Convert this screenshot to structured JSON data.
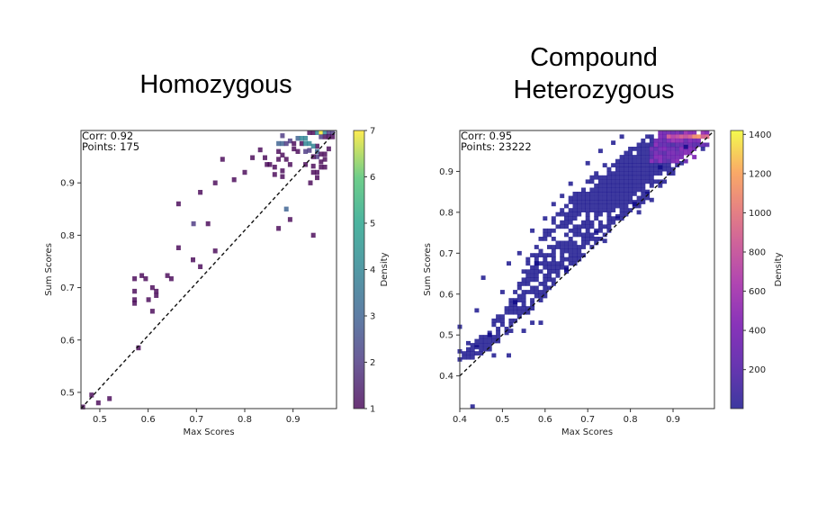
{
  "figure": {
    "panel_titles": [
      "Homozygous",
      "Compound\nHeterozygous"
    ]
  },
  "chart_data": [
    {
      "type": "heatmap",
      "title": "Homozygous",
      "xlabel": "Max Scores",
      "ylabel": "Sum Scores",
      "xlim": [
        0.461,
        0.99
      ],
      "ylim": [
        0.469,
        1.0
      ],
      "xticks": [
        0.5,
        0.6,
        0.7,
        0.8,
        0.9
      ],
      "xtick_labels": [
        "0.5",
        "0.6",
        "0.7",
        "0.8",
        "0.9"
      ],
      "yticks": [
        0.5,
        0.6,
        0.7,
        0.8,
        0.9
      ],
      "ytick_labels": [
        "0.5",
        "0.6",
        "0.7",
        "0.8",
        "0.9"
      ],
      "bin_size": 0.0088,
      "annotation": [
        "Corr: 0.92",
        "Points: 175"
      ],
      "reference_line": {
        "style": "dashed",
        "from": [
          0.461,
          0.469
        ],
        "to": [
          0.99,
          1.0
        ]
      },
      "colorbar": {
        "label": "Density",
        "colormap": "viridis",
        "range": [
          1,
          7
        ],
        "ticks": [
          1,
          2,
          3,
          4,
          5,
          6,
          7
        ]
      },
      "bins": [
        [
          0.465,
          0.472,
          1
        ],
        [
          0.483,
          0.495,
          1
        ],
        [
          0.497,
          0.48,
          1
        ],
        [
          0.52,
          0.488,
          1
        ],
        [
          0.58,
          0.585,
          1
        ],
        [
          0.572,
          0.717,
          1
        ],
        [
          0.572,
          0.693,
          1
        ],
        [
          0.572,
          0.677,
          1
        ],
        [
          0.572,
          0.67,
          1
        ],
        [
          0.587,
          0.723,
          1
        ],
        [
          0.595,
          0.717,
          1
        ],
        [
          0.601,
          0.677,
          1
        ],
        [
          0.609,
          0.7,
          1
        ],
        [
          0.609,
          0.655,
          1
        ],
        [
          0.617,
          0.693,
          1
        ],
        [
          0.617,
          0.685,
          1
        ],
        [
          0.64,
          0.723,
          1
        ],
        [
          0.648,
          0.717,
          1
        ],
        [
          0.663,
          0.776,
          1
        ],
        [
          0.693,
          0.753,
          1
        ],
        [
          0.708,
          0.74,
          1
        ],
        [
          0.739,
          0.77,
          1
        ],
        [
          0.708,
          0.882,
          1
        ],
        [
          0.694,
          0.822,
          2
        ],
        [
          0.724,
          0.822,
          1
        ],
        [
          0.663,
          0.86,
          1
        ],
        [
          0.739,
          0.9,
          1
        ],
        [
          0.754,
          0.945,
          1
        ],
        [
          0.778,
          0.906,
          1
        ],
        [
          0.8,
          0.92,
          1
        ],
        [
          0.816,
          0.948,
          1
        ],
        [
          0.832,
          0.963,
          1
        ],
        [
          0.842,
          0.948,
          1
        ],
        [
          0.846,
          0.935,
          1
        ],
        [
          0.852,
          0.935,
          1
        ],
        [
          0.862,
          0.916,
          1
        ],
        [
          0.862,
          0.93,
          1
        ],
        [
          0.87,
          0.945,
          1
        ],
        [
          0.878,
          0.912,
          1
        ],
        [
          0.878,
          0.923,
          1
        ],
        [
          0.894,
          0.935,
          1
        ],
        [
          0.91,
          0.96,
          1
        ],
        [
          0.926,
          0.935,
          1
        ],
        [
          0.936,
          0.9,
          1
        ],
        [
          0.942,
          0.932,
          1
        ],
        [
          0.95,
          0.97,
          1
        ],
        [
          0.942,
          0.92,
          1
        ],
        [
          0.95,
          0.92,
          1
        ],
        [
          0.95,
          0.91,
          1
        ],
        [
          0.894,
          0.83,
          1
        ],
        [
          0.87,
          0.813,
          1
        ],
        [
          0.942,
          0.8,
          1
        ],
        [
          0.886,
          0.85,
          3
        ],
        [
          0.878,
          0.99,
          2
        ],
        [
          0.87,
          0.975,
          3
        ],
        [
          0.878,
          0.975,
          3
        ],
        [
          0.886,
          0.975,
          2
        ],
        [
          0.894,
          0.98,
          2
        ],
        [
          0.902,
          0.975,
          1
        ],
        [
          0.902,
          0.965,
          1
        ],
        [
          0.91,
          0.985,
          3
        ],
        [
          0.918,
          0.985,
          4
        ],
        [
          0.926,
          0.985,
          4
        ],
        [
          0.918,
          0.975,
          1
        ],
        [
          0.926,
          0.975,
          4
        ],
        [
          0.934,
          0.975,
          4
        ],
        [
          0.942,
          0.97,
          4
        ],
        [
          0.95,
          0.96,
          3
        ],
        [
          0.95,
          0.95,
          2
        ],
        [
          0.958,
          0.955,
          1
        ],
        [
          0.966,
          0.945,
          1
        ],
        [
          0.958,
          0.94,
          1
        ],
        [
          0.934,
          0.996,
          1
        ],
        [
          0.942,
          0.996,
          1
        ],
        [
          0.95,
          0.996,
          4
        ],
        [
          0.958,
          0.996,
          7
        ],
        [
          0.966,
          0.996,
          4
        ],
        [
          0.974,
          0.996,
          2
        ],
        [
          0.982,
          0.996,
          2
        ],
        [
          0.974,
          0.988,
          1
        ],
        [
          0.982,
          0.988,
          1
        ],
        [
          0.966,
          0.988,
          1
        ],
        [
          0.958,
          0.988,
          2
        ],
        [
          0.974,
          0.965,
          1
        ],
        [
          0.966,
          0.955,
          1
        ],
        [
          0.926,
          0.96,
          2
        ],
        [
          0.934,
          0.962,
          2
        ],
        [
          0.942,
          0.95,
          1
        ],
        [
          0.958,
          0.93,
          1
        ],
        [
          0.966,
          0.93,
          1
        ],
        [
          0.878,
          0.953,
          1
        ],
        [
          0.886,
          0.945,
          1
        ],
        [
          0.87,
          0.96,
          1
        ]
      ]
    },
    {
      "type": "heatmap",
      "title": "Compound Heterozygous",
      "xlabel": "Max Scores",
      "ylabel": "Sum Scores",
      "xlim": [
        0.4,
        0.997
      ],
      "ylim": [
        0.32,
        1.0
      ],
      "xticks": [
        0.4,
        0.5,
        0.6,
        0.7,
        0.8,
        0.9
      ],
      "xtick_labels": [
        "0.4",
        "0.5",
        "0.6",
        "0.7",
        "0.8",
        "0.9"
      ],
      "yticks": [
        0.4,
        0.5,
        0.6,
        0.7,
        0.8,
        0.9
      ],
      "ytick_labels": [
        "0.4",
        "0.5",
        "0.6",
        "0.7",
        "0.8",
        "0.9"
      ],
      "bin_size": 0.01,
      "annotation": [
        "Corr: 0.95",
        "Points: 23222"
      ],
      "reference_line": {
        "style": "dashed",
        "from": [
          0.4,
          0.4
        ],
        "to": [
          0.997,
          1.0
        ]
      },
      "colorbar": {
        "label": "Density",
        "colormap": "plasma",
        "range": [
          1,
          1420
        ],
        "ticks": [
          200,
          400,
          600,
          800,
          1000,
          1200,
          1400
        ]
      },
      "row_runs": [
        [
          0.995,
          0.86,
          0.99,
          60
        ],
        [
          0.985,
          0.84,
          0.99,
          120
        ],
        [
          0.975,
          0.83,
          0.99,
          80
        ],
        [
          0.965,
          0.82,
          0.98,
          40
        ],
        [
          0.955,
          0.8,
          0.97,
          30
        ],
        [
          0.945,
          0.79,
          0.96,
          20
        ],
        [
          0.935,
          0.77,
          0.95,
          15
        ],
        [
          0.925,
          0.77,
          0.93,
          12
        ],
        [
          0.915,
          0.74,
          0.92,
          10
        ],
        [
          0.905,
          0.74,
          0.91,
          8
        ],
        [
          0.895,
          0.72,
          0.9,
          6
        ],
        [
          0.885,
          0.71,
          0.89,
          5
        ],
        [
          0.875,
          0.7,
          0.88,
          4
        ],
        [
          0.865,
          0.7,
          0.87,
          3
        ],
        [
          0.855,
          0.68,
          0.86,
          3
        ],
        [
          0.845,
          0.67,
          0.85,
          2
        ],
        [
          0.835,
          0.66,
          0.84,
          2
        ],
        [
          0.825,
          0.66,
          0.83,
          2
        ],
        [
          0.815,
          0.65,
          0.82,
          2
        ],
        [
          0.805,
          0.64,
          0.8,
          2
        ],
        [
          0.795,
          0.63,
          0.79,
          1
        ],
        [
          0.785,
          0.62,
          0.78,
          1
        ],
        [
          0.775,
          0.62,
          0.77,
          1
        ],
        [
          0.765,
          0.61,
          0.76,
          1
        ],
        [
          0.755,
          0.6,
          0.75,
          1
        ],
        [
          0.745,
          0.6,
          0.74,
          1
        ],
        [
          0.735,
          0.59,
          0.73,
          1
        ],
        [
          0.725,
          0.58,
          0.72,
          1
        ],
        [
          0.715,
          0.58,
          0.71,
          1
        ],
        [
          0.705,
          0.57,
          0.7,
          1
        ],
        [
          0.695,
          0.57,
          0.69,
          1
        ],
        [
          0.685,
          0.56,
          0.68,
          1
        ],
        [
          0.675,
          0.56,
          0.67,
          1
        ],
        [
          0.665,
          0.55,
          0.66,
          1
        ],
        [
          0.655,
          0.55,
          0.65,
          1
        ],
        [
          0.645,
          0.54,
          0.64,
          1
        ],
        [
          0.635,
          0.54,
          0.63,
          1
        ],
        [
          0.625,
          0.54,
          0.62,
          1
        ],
        [
          0.615,
          0.54,
          0.61,
          1
        ],
        [
          0.605,
          0.53,
          0.6,
          1
        ],
        [
          0.595,
          0.53,
          0.6,
          1
        ],
        [
          0.585,
          0.52,
          0.59,
          1
        ],
        [
          0.575,
          0.52,
          0.58,
          1
        ],
        [
          0.565,
          0.51,
          0.57,
          1
        ],
        [
          0.555,
          0.5,
          0.56,
          1
        ],
        [
          0.545,
          0.49,
          0.55,
          1
        ],
        [
          0.535,
          0.48,
          0.54,
          1
        ],
        [
          0.525,
          0.48,
          0.53,
          1
        ],
        [
          0.515,
          0.47,
          0.52,
          1
        ],
        [
          0.505,
          0.46,
          0.51,
          1
        ],
        [
          0.495,
          0.45,
          0.5,
          1
        ],
        [
          0.485,
          0.44,
          0.49,
          1
        ],
        [
          0.475,
          0.43,
          0.48,
          1
        ],
        [
          0.465,
          0.42,
          0.47,
          1
        ],
        [
          0.455,
          0.41,
          0.46,
          1
        ],
        [
          0.445,
          0.4,
          0.45,
          1
        ]
      ],
      "scatter_bins": [
        [
          0.43,
          0.325,
          1
        ],
        [
          0.4,
          0.52,
          1
        ],
        [
          0.4,
          0.46,
          1
        ],
        [
          0.4,
          0.44,
          1
        ],
        [
          0.42,
          0.48,
          1
        ],
        [
          0.44,
          0.56,
          1
        ],
        [
          0.455,
          0.64,
          1
        ],
        [
          0.48,
          0.45,
          1
        ],
        [
          0.515,
          0.45,
          1
        ],
        [
          0.5,
          0.605,
          1
        ],
        [
          0.515,
          0.675,
          1
        ],
        [
          0.53,
          0.58,
          1
        ],
        [
          0.54,
          0.7,
          1
        ],
        [
          0.57,
          0.755,
          1
        ],
        [
          0.58,
          0.675,
          1
        ],
        [
          0.6,
          0.785,
          1
        ],
        [
          0.62,
          0.82,
          1
        ],
        [
          0.64,
          0.84,
          1
        ],
        [
          0.66,
          0.87,
          1
        ],
        [
          0.7,
          0.92,
          1
        ],
        [
          0.73,
          0.95,
          1
        ],
        [
          0.76,
          0.97,
          1
        ],
        [
          0.78,
          0.985,
          1
        ],
        [
          0.69,
          0.715,
          1
        ],
        [
          0.72,
          0.75,
          1
        ],
        [
          0.77,
          0.79,
          1
        ],
        [
          0.81,
          0.82,
          1
        ],
        [
          0.84,
          0.85,
          1
        ],
        [
          0.87,
          0.91,
          1
        ],
        [
          0.92,
          0.92,
          1
        ],
        [
          0.93,
          0.96,
          1
        ],
        [
          0.97,
          0.955,
          1
        ],
        [
          0.85,
          0.83,
          1
        ],
        [
          0.82,
          0.8,
          1
        ],
        [
          0.74,
          0.73,
          1
        ],
        [
          0.68,
          0.695,
          1
        ],
        [
          0.65,
          0.66,
          1
        ],
        [
          0.57,
          0.53,
          1
        ],
        [
          0.59,
          0.53,
          1
        ],
        [
          0.55,
          0.51,
          1
        ],
        [
          0.52,
          0.51,
          1
        ],
        [
          0.47,
          0.5,
          2
        ],
        [
          0.44,
          0.47,
          2
        ]
      ]
    }
  ]
}
